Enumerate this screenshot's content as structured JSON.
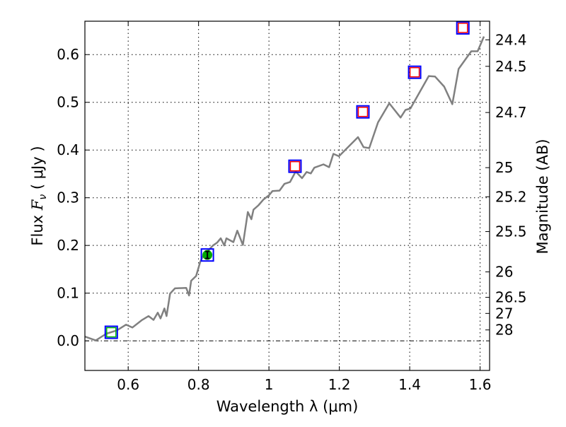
{
  "chart_data": {
    "type": "line",
    "title": "",
    "xlabel": "Wavelength  λ (μm)",
    "ylabel": "Flux  F_ν  ( μJy )",
    "ylabel_parts": {
      "prefix": "Flux  ",
      "symbol": "F",
      "subscript": "ν",
      "suffix": "  ( μJy )"
    },
    "y2label": "Magnitude (AB)",
    "xlim": [
      0.477,
      1.627
    ],
    "ylim": [
      -0.062,
      0.67
    ],
    "grid": true,
    "xticks": [
      0.6,
      0.8,
      1.0,
      1.2,
      1.4,
      1.6
    ],
    "xtick_labels": [
      "0.6",
      "0.8",
      "1",
      "1.2",
      "1.4",
      "1.6"
    ],
    "yticks": [
      0.0,
      0.1,
      0.2,
      0.3,
      0.4,
      0.5,
      0.6
    ],
    "ytick_labels": [
      "0.0",
      "0.1",
      "0.2",
      "0.3",
      "0.4",
      "0.5",
      "0.6"
    ],
    "y2ticks_mag": [
      24.4,
      24.5,
      24.7,
      25,
      25.2,
      25.5,
      26,
      26.5,
      27,
      28
    ],
    "y2tick_labels": [
      "24.4",
      "24.5",
      "24.7",
      "25",
      "25.2",
      "25.5",
      "26",
      "26.5",
      "27",
      "28"
    ],
    "colors": {
      "spectrum": "#808080",
      "box": "#0000ff",
      "model_red": "#ff0000",
      "model_green": "#00bb00",
      "detection": "#00aa00"
    },
    "series": [
      {
        "name": "spectrum",
        "x": [
          0.477,
          0.508,
          0.538,
          0.568,
          0.594,
          0.612,
          0.638,
          0.658,
          0.672,
          0.684,
          0.692,
          0.703,
          0.709,
          0.719,
          0.733,
          0.765,
          0.773,
          0.779,
          0.793,
          0.805,
          0.813,
          0.841,
          0.853,
          0.863,
          0.873,
          0.879,
          0.899,
          0.91,
          0.926,
          0.94,
          0.95,
          0.956,
          0.97,
          0.984,
          1.0,
          1.01,
          1.03,
          1.044,
          1.06,
          1.076,
          1.094,
          1.107,
          1.119,
          1.129,
          1.155,
          1.171,
          1.183,
          1.199,
          1.253,
          1.269,
          1.285,
          1.31,
          1.342,
          1.374,
          1.388,
          1.402,
          1.454,
          1.472,
          1.498,
          1.521,
          1.539,
          1.575,
          1.593,
          1.611
        ],
        "y": [
          0.009,
          0.001,
          0.015,
          0.022,
          0.034,
          0.028,
          0.043,
          0.052,
          0.044,
          0.059,
          0.047,
          0.068,
          0.052,
          0.099,
          0.11,
          0.111,
          0.095,
          0.126,
          0.136,
          0.166,
          0.178,
          0.2,
          0.206,
          0.215,
          0.2,
          0.215,
          0.207,
          0.231,
          0.201,
          0.27,
          0.255,
          0.275,
          0.284,
          0.296,
          0.305,
          0.314,
          0.315,
          0.329,
          0.333,
          0.355,
          0.341,
          0.354,
          0.351,
          0.363,
          0.37,
          0.364,
          0.392,
          0.387,
          0.427,
          0.406,
          0.404,
          0.458,
          0.498,
          0.468,
          0.484,
          0.487,
          0.555,
          0.554,
          0.533,
          0.496,
          0.57,
          0.607,
          0.607,
          0.638
        ]
      }
    ],
    "photometry": [
      {
        "x": 0.552,
        "y": 0.018,
        "inner": "green-square"
      },
      {
        "x": 0.825,
        "y": 0.18,
        "inner": "detection"
      },
      {
        "x": 1.074,
        "y": 0.366,
        "inner": "red-square"
      },
      {
        "x": 1.267,
        "y": 0.48,
        "inner": "red-square"
      },
      {
        "x": 1.414,
        "y": 0.563,
        "inner": "red-square"
      },
      {
        "x": 1.551,
        "y": 0.656,
        "inner": "red-square"
      }
    ]
  }
}
